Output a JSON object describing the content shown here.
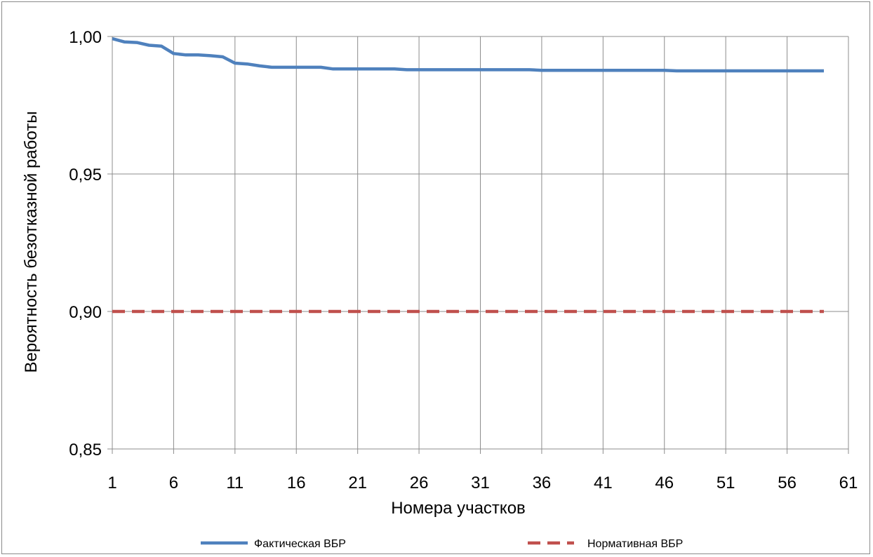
{
  "chart_data": {
    "type": "line",
    "title": "",
    "xlabel": "Номера участков",
    "ylabel": "Вероятность безотказной работы",
    "xlim": [
      1,
      61
    ],
    "ylim": [
      0.85,
      1.0
    ],
    "x_ticks": [
      "1",
      "6",
      "11",
      "16",
      "21",
      "26",
      "31",
      "36",
      "41",
      "46",
      "51",
      "56",
      "61"
    ],
    "y_ticks": [
      "0,85",
      "0,90",
      "0,95",
      "1,00"
    ],
    "grid": "both",
    "legend_position": "bottom",
    "series": [
      {
        "name": "Фактическая ВБР",
        "color": "#4f81bd",
        "style": "solid",
        "x": [
          1,
          2,
          3,
          4,
          5,
          6,
          7,
          8,
          9,
          10,
          11,
          12,
          13,
          14,
          15,
          16,
          17,
          18,
          19,
          20,
          21,
          22,
          23,
          24,
          25,
          26,
          27,
          28,
          29,
          30,
          31,
          32,
          33,
          34,
          35,
          36,
          37,
          38,
          39,
          40,
          41,
          42,
          43,
          44,
          45,
          46,
          47,
          48,
          49,
          50,
          51,
          52,
          53,
          54,
          55,
          56,
          57,
          58,
          59
        ],
        "values": [
          0.9992,
          0.998,
          0.9978,
          0.9968,
          0.9965,
          0.9938,
          0.9933,
          0.9933,
          0.993,
          0.9926,
          0.9903,
          0.99,
          0.9893,
          0.9888,
          0.9888,
          0.9888,
          0.9888,
          0.9888,
          0.9882,
          0.9882,
          0.9882,
          0.9882,
          0.9882,
          0.9882,
          0.9879,
          0.9879,
          0.9879,
          0.9879,
          0.9879,
          0.9879,
          0.9879,
          0.9879,
          0.9879,
          0.9879,
          0.9879,
          0.9877,
          0.9877,
          0.9877,
          0.9877,
          0.9877,
          0.9877,
          0.9877,
          0.9877,
          0.9877,
          0.9877,
          0.9877,
          0.9875,
          0.9875,
          0.9875,
          0.9875,
          0.9875,
          0.9875,
          0.9875,
          0.9875,
          0.9875,
          0.9875,
          0.9875,
          0.9875,
          0.9875
        ]
      },
      {
        "name": "Нормативная ВБР",
        "color": "#c0504d",
        "style": "dashed",
        "x": [
          1,
          59
        ],
        "values": [
          0.9,
          0.9
        ]
      }
    ]
  }
}
